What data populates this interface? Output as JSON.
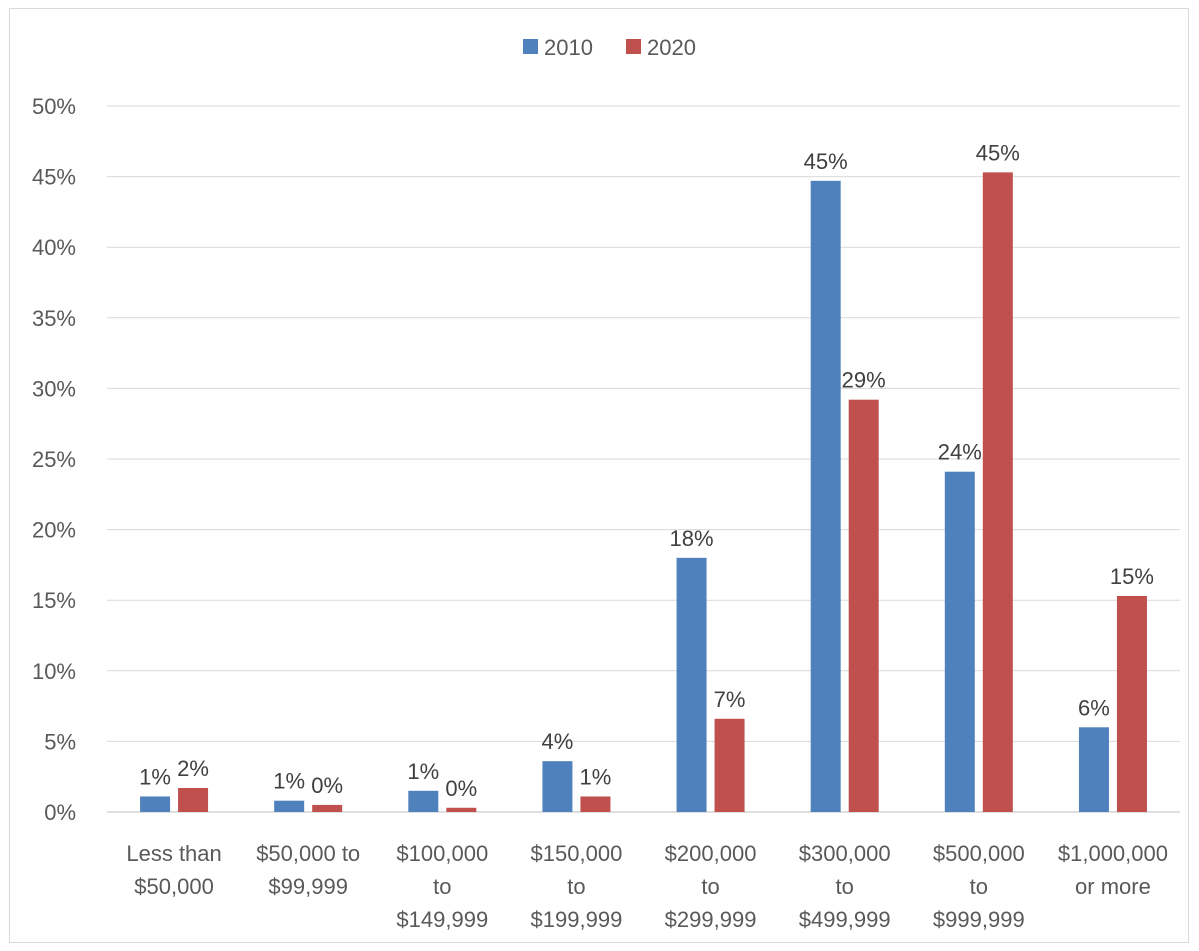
{
  "chart_data": {
    "type": "bar",
    "title": "",
    "xlabel": "",
    "ylabel": "",
    "ylim": [
      0,
      0.5
    ],
    "y_ticks": [
      "0%",
      "5%",
      "10%",
      "15%",
      "20%",
      "25%",
      "30%",
      "35%",
      "40%",
      "45%",
      "50%"
    ],
    "grid": true,
    "legend_position": "top-center",
    "categories": [
      [
        "Less than",
        "$50,000"
      ],
      [
        "$50,000 to",
        "$99,999"
      ],
      [
        "$100,000",
        "to",
        "$149,999"
      ],
      [
        "$150,000",
        "to",
        "$199,999"
      ],
      [
        "$200,000",
        "to",
        "$299,999"
      ],
      [
        "$300,000",
        "to",
        "$499,999"
      ],
      [
        "$500,000",
        "to",
        "$999,999"
      ],
      [
        "$1,000,000",
        "or more"
      ]
    ],
    "series": [
      {
        "name": "2010",
        "color": "#4f81bd",
        "values": [
          0.011,
          0.008,
          0.015,
          0.036,
          0.18,
          0.447,
          0.241,
          0.06
        ],
        "labels": [
          "1%",
          "1%",
          "1%",
          "4%",
          "18%",
          "45%",
          "24%",
          "6%"
        ]
      },
      {
        "name": "2020",
        "color": "#c0504d",
        "values": [
          0.017,
          0.005,
          0.003,
          0.011,
          0.066,
          0.292,
          0.453,
          0.153
        ],
        "labels": [
          "2%",
          "0%",
          "0%",
          "1%",
          "7%",
          "29%",
          "45%",
          "15%"
        ]
      }
    ]
  }
}
